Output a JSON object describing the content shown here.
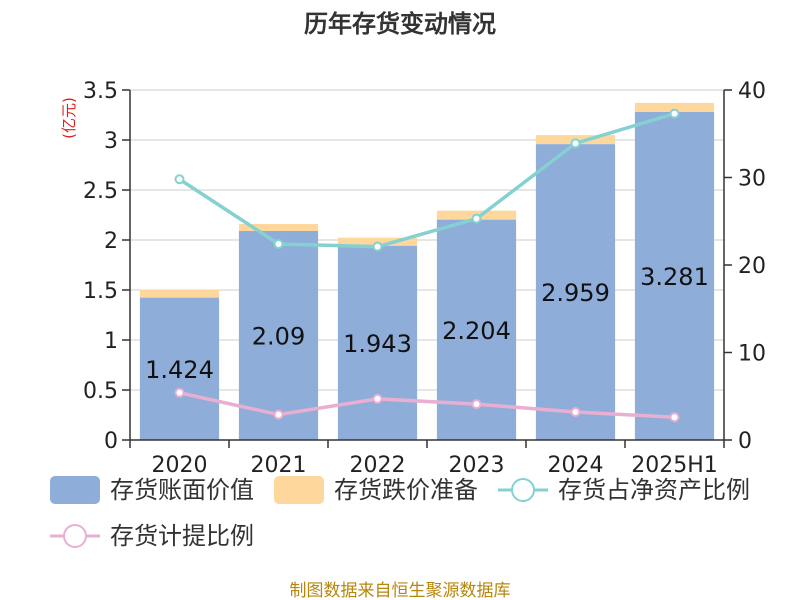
{
  "title": "历年存货变动情况",
  "source": "制图数据来自恒生聚源数据库",
  "colors": {
    "book_value": "#8eadd9",
    "provision": "#fdd79c",
    "ratio_net_assets": "#85d1d1",
    "provision_ratio": "#e8afd3"
  },
  "chart_data": {
    "type": "bar",
    "title": "历年存货变动情况",
    "categories": [
      "2020",
      "2021",
      "2022",
      "2023",
      "2024",
      "2025H1"
    ],
    "y_left": {
      "unit": "(亿元)",
      "ylim": [
        0,
        3.5
      ],
      "ticks": [
        "0",
        "0.5",
        "1",
        "1.5",
        "2",
        "2.5",
        "3",
        "3.5"
      ]
    },
    "y_right": {
      "ylim": [
        0,
        40
      ],
      "ticks": [
        "0",
        "10",
        "20",
        "30",
        "40"
      ]
    },
    "grid": true,
    "legend_position": "bottom",
    "series": [
      {
        "name": "存货账面价值",
        "type": "bar",
        "axis": "left",
        "stack": "inv",
        "values": [
          1.424,
          2.09,
          1.943,
          2.204,
          2.959,
          3.281
        ],
        "labels": [
          "1.424",
          "2.09",
          "1.943",
          "2.204",
          "2.959",
          "3.281"
        ]
      },
      {
        "name": "存货跌价准备",
        "type": "bar",
        "axis": "left",
        "stack": "inv",
        "values": [
          0.08,
          0.07,
          0.08,
          0.09,
          0.09,
          0.09
        ]
      },
      {
        "name": "存货占净资产比例",
        "type": "line",
        "axis": "right",
        "values": [
          29.8,
          22.4,
          22.1,
          25.3,
          33.9,
          37.3
        ]
      },
      {
        "name": "存货计提比例",
        "type": "line",
        "axis": "right",
        "values": [
          5.4,
          2.9,
          4.7,
          4.1,
          3.2,
          2.6
        ]
      }
    ]
  }
}
